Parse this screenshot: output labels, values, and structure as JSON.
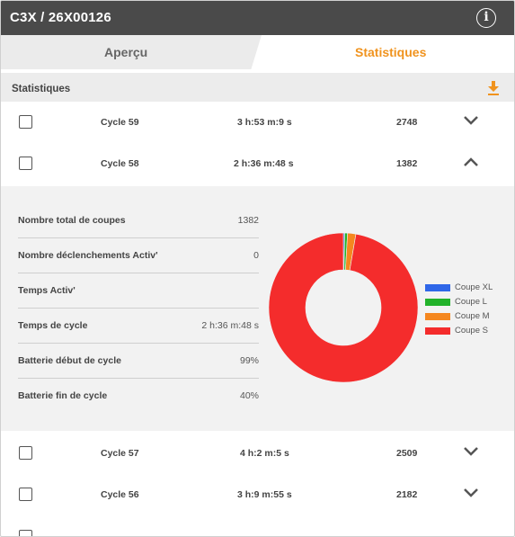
{
  "header": {
    "title": "C3X / 26X00126",
    "info_icon": "info-icon"
  },
  "tabs": [
    {
      "label": "Aperçu",
      "active": false
    },
    {
      "label": "Statistiques",
      "active": true,
      "color": "#f0931e"
    }
  ],
  "section": {
    "title": "Statistiques",
    "download_icon": "download-icon",
    "download_color": "#f0931e"
  },
  "cycles": [
    {
      "name": "Cycle 59",
      "duration": "3 h:53 m:9 s",
      "count": "2748",
      "expanded": false
    },
    {
      "name": "Cycle 58",
      "duration": "2 h:36 m:48 s",
      "count": "1382",
      "expanded": true
    },
    {
      "name": "Cycle 57",
      "duration": "4 h:2 m:5 s",
      "count": "2509",
      "expanded": false
    },
    {
      "name": "Cycle 56",
      "duration": "3 h:9 m:55 s",
      "count": "2182",
      "expanded": false
    }
  ],
  "detail": {
    "stats": [
      {
        "label": "Nombre total de coupes",
        "value": "1382"
      },
      {
        "label": "Nombre déclenchements Activ'",
        "value": "0"
      },
      {
        "label": "Temps Activ'",
        "value": ""
      },
      {
        "label": "Temps de cycle",
        "value": "2 h:36 m:48 s"
      },
      {
        "label": "Batterie début de cycle",
        "value": "99%"
      },
      {
        "label": "Batterie fin de cycle",
        "value": "40%"
      }
    ]
  },
  "chart_data": {
    "type": "pie",
    "donut": true,
    "labels": [
      "Coupe XL",
      "Coupe L",
      "Coupe M",
      "Coupe S"
    ],
    "values": [
      0.3,
      0.6,
      1.8,
      97.3
    ],
    "colors": [
      "#2f67e8",
      "#22b22a",
      "#f5871f",
      "#f42c2c"
    ],
    "legend": "right"
  }
}
